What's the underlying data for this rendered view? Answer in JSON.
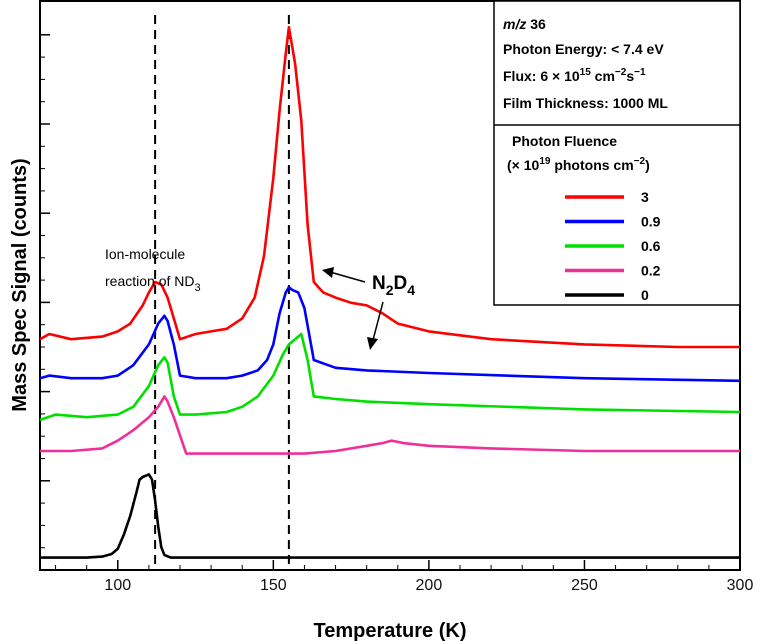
{
  "chart_data": {
    "type": "line",
    "xlabel": "Temperature (K)",
    "ylabel": "Mass Spec Signal (counts)",
    "xlim": [
      75,
      300
    ],
    "x_ticks": [
      "100",
      "150",
      "200",
      "250",
      "300"
    ],
    "y_tick_labels_shown": false,
    "grid": false,
    "info_box": {
      "line1_italic": "m/z",
      "line1_rest": " 36",
      "photon_energy": "Photon Energy: < 7.4 eV",
      "flux_prefix": "Flux: 6 × 10",
      "flux_exp1": "15",
      "flux_mid": " cm",
      "flux_exp2": "−2",
      "flux_mid2": "s",
      "flux_exp3": "−1",
      "film": "Film Thickness: 1000 ML"
    },
    "legend": {
      "title_line1": "Photon Fluence",
      "title_line2_prefix": "(× 10",
      "title_line2_exp1": "19",
      "title_line2_mid": " photons cm",
      "title_line2_exp2": "−2",
      "title_line2_suffix": ")",
      "placement": "top-right"
    },
    "annotations": {
      "ion_line1": "Ion-molecule",
      "ion_line2_prefix": "reaction of ND",
      "ion_line2_sub": "3",
      "n2d4_n": "N",
      "n2d4_sub1": "2",
      "n2d4_d": "D",
      "n2d4_sub2": "4"
    },
    "vlines_x": [
      112,
      155
    ],
    "series": [
      {
        "name": "3",
        "color": "#ff0000",
        "x": [
          75,
          78,
          85,
          95,
          100,
          104,
          108,
          110,
          112,
          114,
          116,
          118,
          120,
          125,
          130,
          135,
          140,
          144,
          147,
          150,
          152,
          154,
          155,
          157,
          159,
          161,
          163,
          166,
          170,
          175,
          180,
          185,
          190,
          200,
          220,
          250,
          280,
          300
        ],
        "y": [
          0.44,
          0.45,
          0.44,
          0.445,
          0.455,
          0.47,
          0.505,
          0.53,
          0.55,
          0.545,
          0.52,
          0.48,
          0.44,
          0.45,
          0.455,
          0.46,
          0.48,
          0.52,
          0.6,
          0.75,
          0.88,
          0.99,
          1.04,
          0.97,
          0.86,
          0.66,
          0.55,
          0.53,
          0.52,
          0.51,
          0.505,
          0.49,
          0.47,
          0.455,
          0.44,
          0.43,
          0.425,
          0.425
        ]
      },
      {
        "name": "0.9",
        "color": "#0000ff",
        "x": [
          75,
          78,
          85,
          95,
          100,
          105,
          110,
          113,
          115,
          116,
          118,
          120,
          125,
          135,
          140,
          145,
          148,
          150,
          152,
          154,
          155,
          156,
          158,
          160,
          163,
          170,
          180,
          200,
          250,
          300
        ],
        "y": [
          0.365,
          0.37,
          0.365,
          0.365,
          0.37,
          0.39,
          0.43,
          0.47,
          0.485,
          0.475,
          0.43,
          0.37,
          0.365,
          0.365,
          0.37,
          0.38,
          0.4,
          0.43,
          0.49,
          0.53,
          0.54,
          0.535,
          0.53,
          0.5,
          0.4,
          0.385,
          0.38,
          0.375,
          0.365,
          0.36
        ]
      },
      {
        "name": "0.6",
        "color": "#00e000",
        "x": [
          75,
          80,
          90,
          100,
          105,
          110,
          113,
          115,
          116,
          118,
          120,
          125,
          135,
          140,
          145,
          150,
          153,
          155,
          157,
          159,
          161,
          163,
          170,
          180,
          200,
          250,
          300
        ],
        "y": [
          0.285,
          0.295,
          0.29,
          0.295,
          0.31,
          0.35,
          0.39,
          0.405,
          0.395,
          0.33,
          0.295,
          0.295,
          0.3,
          0.31,
          0.33,
          0.37,
          0.41,
          0.43,
          0.44,
          0.45,
          0.4,
          0.33,
          0.325,
          0.32,
          0.315,
          0.305,
          0.3
        ]
      },
      {
        "name": "0.2",
        "color": "#f0309a",
        "x": [
          75,
          85,
          95,
          100,
          105,
          110,
          113,
          115,
          116,
          118,
          120,
          122,
          130,
          140,
          150,
          160,
          170,
          180,
          185,
          188,
          192,
          200,
          220,
          250,
          300
        ],
        "y": [
          0.225,
          0.225,
          0.23,
          0.245,
          0.265,
          0.29,
          0.31,
          0.33,
          0.32,
          0.29,
          0.255,
          0.22,
          0.22,
          0.22,
          0.22,
          0.22,
          0.225,
          0.235,
          0.24,
          0.245,
          0.24,
          0.235,
          0.23,
          0.225,
          0.225
        ]
      },
      {
        "name": "0",
        "color": "#000000",
        "x": [
          75,
          85,
          90,
          95,
          98,
          100,
          102,
          104,
          106,
          107,
          108,
          110,
          111,
          112,
          113,
          114,
          115,
          117,
          125,
          150,
          300
        ],
        "y": [
          0.02,
          0.02,
          0.02,
          0.022,
          0.027,
          0.037,
          0.065,
          0.1,
          0.145,
          0.17,
          0.175,
          0.18,
          0.17,
          0.13,
          0.08,
          0.04,
          0.025,
          0.02,
          0.02,
          0.02,
          0.02
        ]
      }
    ]
  }
}
